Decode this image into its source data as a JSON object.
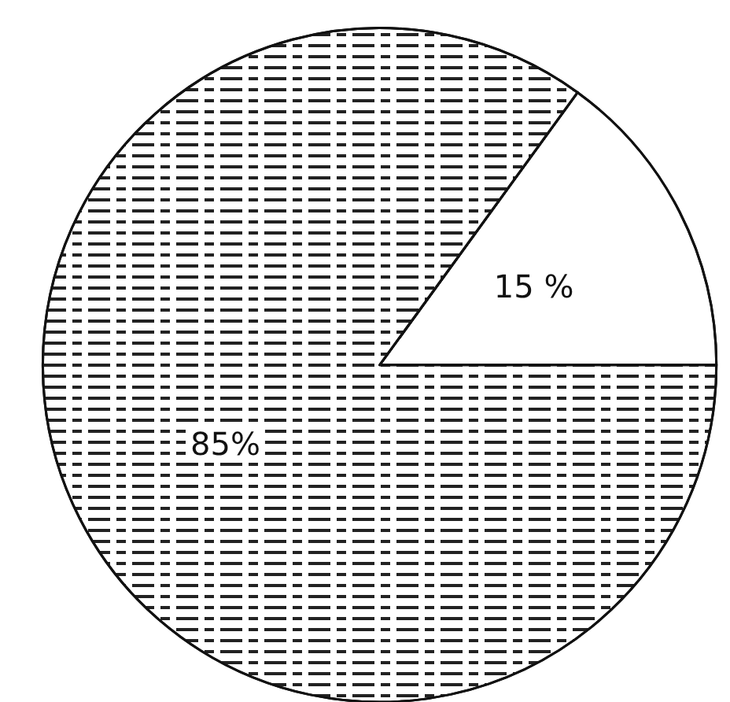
{
  "chart_data": {
    "type": "pie",
    "categories": [
      null,
      null
    ],
    "values": [
      15,
      85
    ],
    "colors": [
      "#ffffff",
      "#ffffff"
    ],
    "value_labels": [
      "15 %",
      "85%"
    ]
  }
}
